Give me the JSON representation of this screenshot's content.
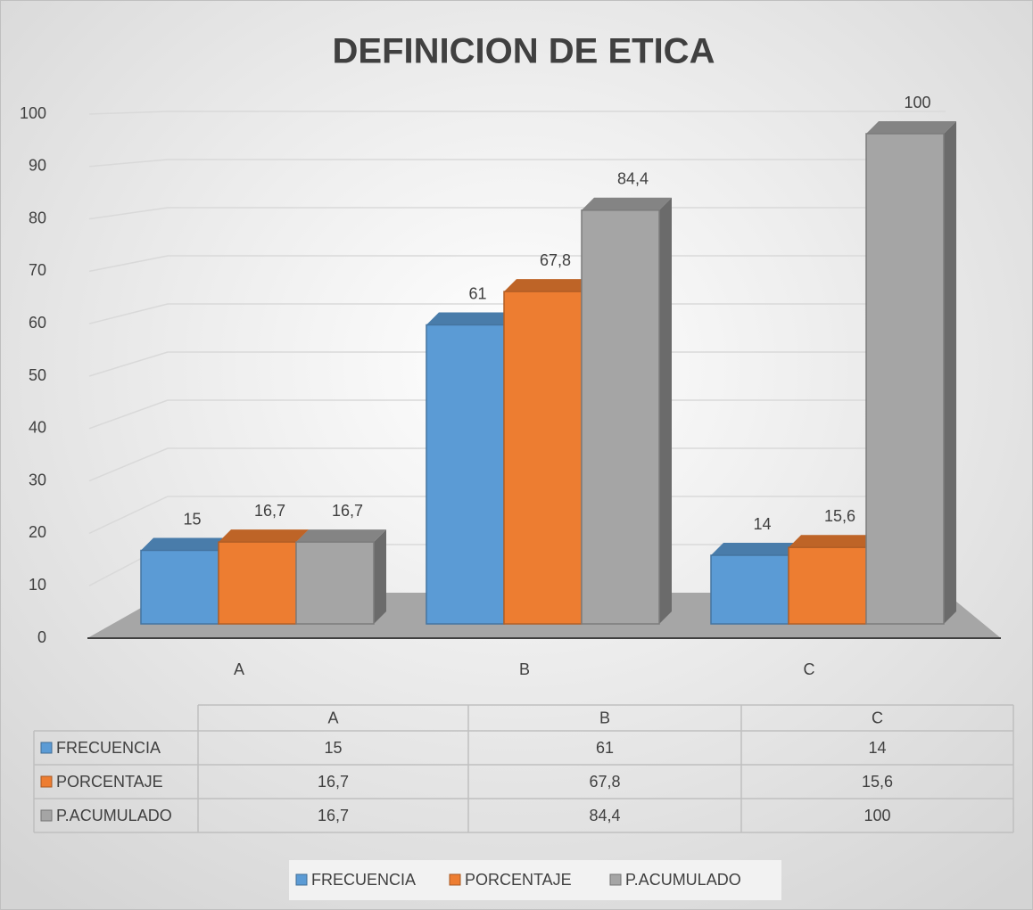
{
  "chart_data": {
    "type": "bar3d",
    "title": "DEFINICION DE ETICA",
    "categories": [
      "A",
      "B",
      "C"
    ],
    "series": [
      {
        "name": "FRECUENCIA",
        "color": "#5b9bd5",
        "values": [
          15,
          61,
          14
        ]
      },
      {
        "name": "PORCENTAJE",
        "color": "#ed7d31",
        "values": [
          16.7,
          67.8,
          15.6
        ],
        "value_labels": [
          "16,7",
          "67,8",
          "15,6"
        ]
      },
      {
        "name": "P.ACUMULADO",
        "color": "#a5a5a5",
        "values": [
          16.7,
          84.4,
          100
        ],
        "value_labels": [
          "16,7",
          "84,4",
          "100"
        ]
      }
    ],
    "ylim": [
      0,
      100
    ],
    "yticks": [
      0,
      10,
      20,
      30,
      40,
      50,
      60,
      70,
      80,
      90,
      100
    ],
    "grid": true,
    "data_table": true,
    "legend": "bottom"
  }
}
